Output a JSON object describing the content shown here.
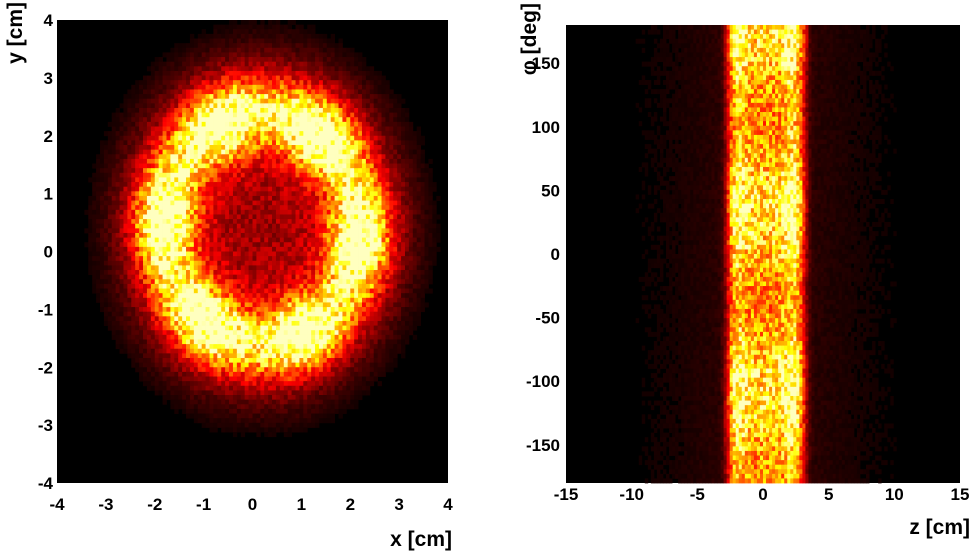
{
  "chart_data": [
    {
      "type": "heatmap",
      "xlabel": "x [cm]",
      "ylabel": "y [cm]",
      "xlim": [
        -4,
        4
      ],
      "ylim": [
        -4,
        4
      ],
      "xticks": [
        -4,
        -3,
        -2,
        -1,
        0,
        1,
        2,
        3,
        4
      ],
      "yticks": [
        -4,
        -3,
        -2,
        -1,
        0,
        1,
        2,
        3,
        4
      ],
      "xtick_labels": [
        "-4",
        "-3",
        "-2",
        "-1",
        "0",
        "1",
        "2",
        "3",
        "4"
      ],
      "ytick_labels": [
        "-4",
        "-3",
        "-2",
        "-1",
        "0",
        "1",
        "2",
        "3",
        "4"
      ],
      "bins": [
        100,
        100
      ],
      "colormap": "hot (black → red → yellow)",
      "background": "#000000",
      "distribution": {
        "shape": "ring",
        "center": [
          0.2,
          0.4
        ],
        "ring_radius": 2.0,
        "ring_width": 0.6,
        "hot_spots_at": [
          2.0,
          1.7,
          3.8
        ],
        "halo_radius": 3.8,
        "relative_intensity": {
          "ring_peak": 1.0,
          "inner_core": 0.3,
          "outer_halo": 0.15,
          "outside": 0.0
        }
      }
    },
    {
      "type": "heatmap",
      "xlabel": "z [cm]",
      "ylabel": "φ [deg]",
      "xlim": [
        -15,
        15
      ],
      "ylim": [
        -180,
        180
      ],
      "xticks": [
        -15,
        -10,
        -5,
        0,
        5,
        10,
        15
      ],
      "yticks": [
        -150,
        -100,
        -50,
        0,
        50,
        100,
        150
      ],
      "xtick_labels": [
        "-15",
        "-10",
        "-5",
        "0",
        "5",
        "10",
        "15"
      ],
      "ytick_labels": [
        "-150",
        "-100",
        "-50",
        "0",
        "50",
        "100",
        "150"
      ],
      "bins": [
        130,
        100
      ],
      "colormap": "hot (black → red → yellow)",
      "background": "#000000",
      "distribution": {
        "shape": "vertical band",
        "band_range": [
          -2.5,
          3.0
        ],
        "edge_peaks_at": [
          -2.2,
          2.4
        ],
        "relative_intensity": {
          "band_edges": 1.0,
          "band_center": 0.7,
          "outside_band": 0.12
        }
      }
    }
  ]
}
